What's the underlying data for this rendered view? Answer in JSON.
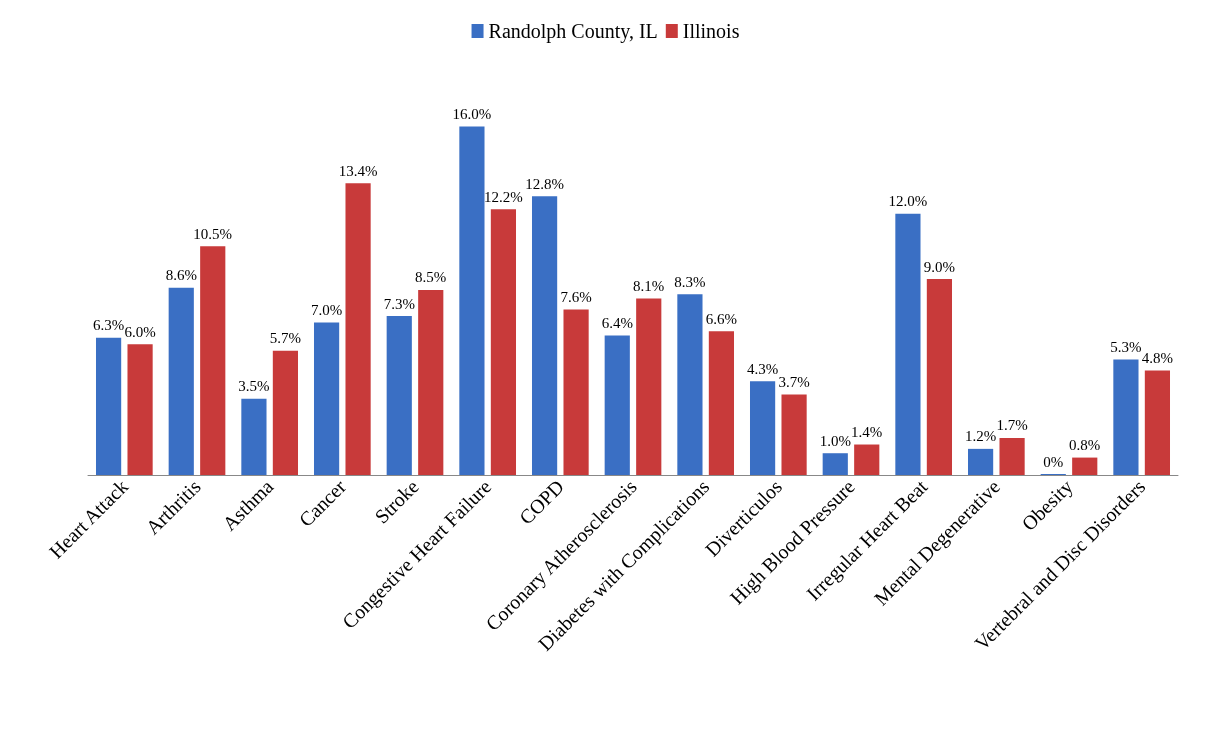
{
  "chart_data": {
    "type": "bar",
    "categories": [
      "Heart Attack",
      "Arthritis",
      "Asthma",
      "Cancer",
      "Stroke",
      "Congestive Heart Failure",
      "COPD",
      "Coronary Atherosclerosis",
      "Diabetes with Complications",
      "Diverticulos",
      "High Blood Pressure",
      "Irregular Heart Beat",
      "Mental Degenerative",
      "Obesity",
      "Vertebral and Disc Disorders"
    ],
    "series": [
      {
        "name": "Randolph County, IL",
        "color": "#3a6fc4",
        "values": [
          6.3,
          8.6,
          3.5,
          7.0,
          7.3,
          16.0,
          12.8,
          6.4,
          8.3,
          4.3,
          1.0,
          12.0,
          1.2,
          0,
          5.3
        ],
        "value_labels": [
          "6.3%",
          "8.6%",
          "3.5%",
          "7.0%",
          "7.3%",
          "16.0%",
          "12.8%",
          "6.4%",
          "8.3%",
          "4.3%",
          "1.0%",
          "12.0%",
          "1.2%",
          "0%",
          "5.3%"
        ]
      },
      {
        "name": "Illinois",
        "color": "#c83a3a",
        "values": [
          6.0,
          10.5,
          5.7,
          13.4,
          8.5,
          12.2,
          7.6,
          8.1,
          6.6,
          3.7,
          1.4,
          9.0,
          1.7,
          0.8,
          4.8
        ],
        "value_labels": [
          "6.0%",
          "10.5%",
          "5.7%",
          "13.4%",
          "8.5%",
          "12.2%",
          "7.6%",
          "8.1%",
          "6.6%",
          "3.7%",
          "1.4%",
          "9.0%",
          "1.7%",
          "0.8%",
          "4.8%"
        ]
      }
    ],
    "legend": "top"
  }
}
